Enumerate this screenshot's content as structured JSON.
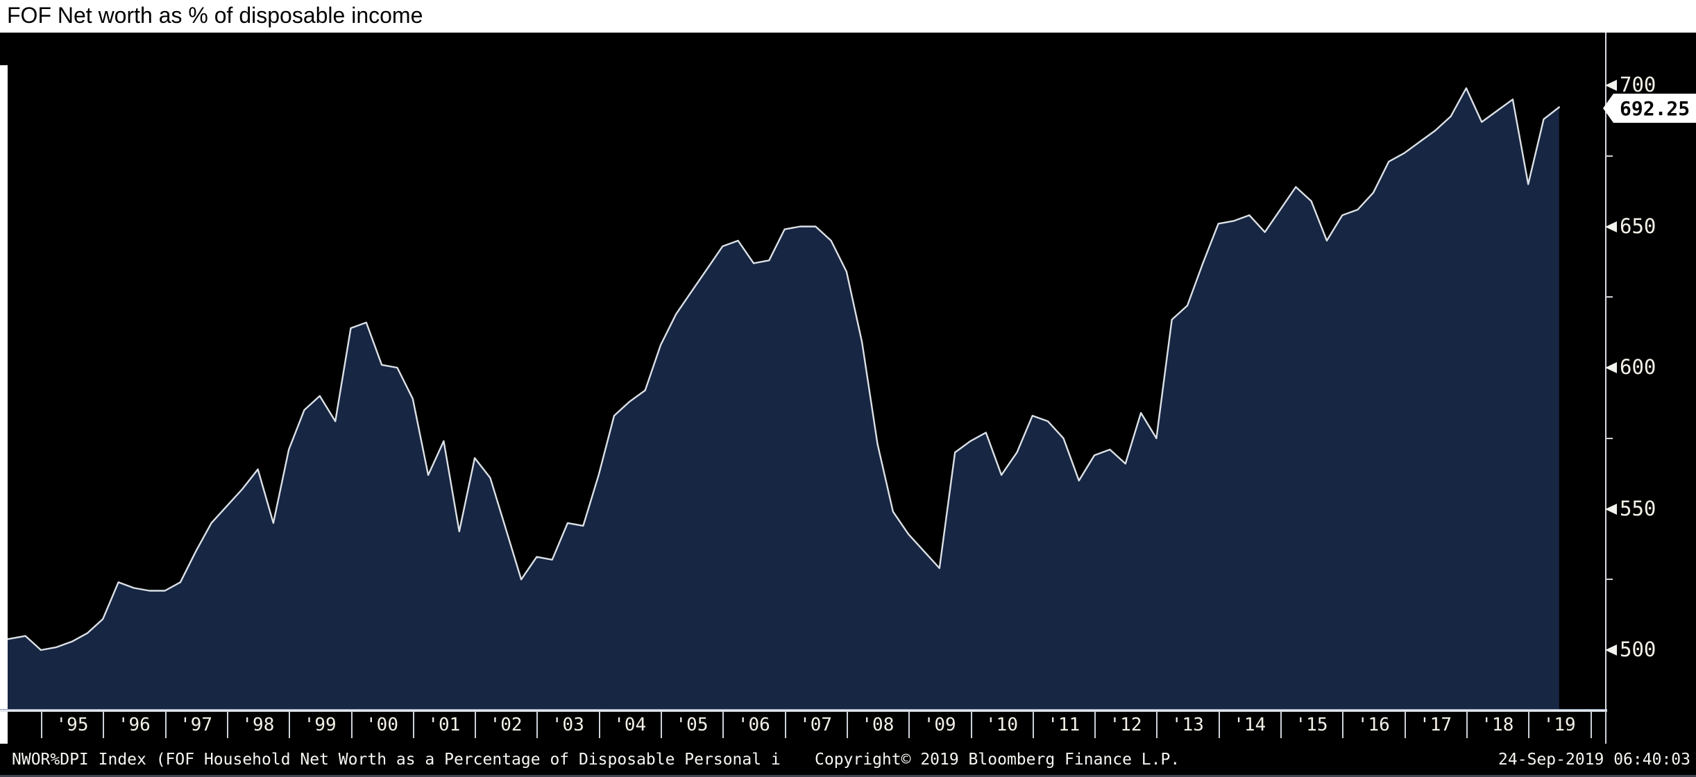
{
  "title": "FOF Net worth as % of disposable income",
  "y_axis": {
    "current_value": "692.25",
    "major_ticks": [
      500,
      550,
      600,
      650,
      700
    ],
    "minor_ticks": [
      525,
      575,
      625,
      675
    ]
  },
  "x_axis": {
    "year_labels": [
      "'95",
      "'96",
      "'97",
      "'98",
      "'99",
      "'00",
      "'01",
      "'02",
      "'03",
      "'04",
      "'05",
      "'06",
      "'07",
      "'08",
      "'09",
      "'10",
      "'11",
      "'12",
      "'13",
      "'14",
      "'15",
      "'16",
      "'17",
      "'18",
      "'19"
    ]
  },
  "footer": {
    "left": "NWOR%DPI Index (FOF Household Net Worth as a Percentage of Disposable Personal i",
    "center": "Copyright© 2019 Bloomberg Finance L.P.",
    "right": "24-Sep-2019 06:40:03"
  },
  "colors": {
    "background": "#000000",
    "title_bar": "#ffffff",
    "area_fill": "#172642",
    "line": "#dce1e7",
    "axis": "#d8dce2",
    "tick_label": "#f4f1e8",
    "flag_bg": "#ffffff",
    "flag_text": "#000000"
  },
  "chart_data": {
    "type": "area",
    "title": "FOF Net worth as % of disposable income",
    "xlabel": "",
    "ylabel": "Net worth as % of disposable income",
    "x_range_years": [
      1994.25,
      2019.5
    ],
    "ylim": [
      479,
      718
    ],
    "y_ticks": [
      500,
      550,
      600,
      650,
      700
    ],
    "grid": false,
    "legend": "none",
    "last_value": 692.25,
    "series": [
      {
        "name": "NWOR%DPI Index",
        "points": [
          {
            "q": "1994Q1",
            "v": 503
          },
          {
            "q": "1994Q2",
            "v": 504
          },
          {
            "q": "1994Q3",
            "v": 505
          },
          {
            "q": "1994Q4",
            "v": 500
          },
          {
            "q": "1995Q1",
            "v": 501
          },
          {
            "q": "1995Q2",
            "v": 503
          },
          {
            "q": "1995Q3",
            "v": 506
          },
          {
            "q": "1995Q4",
            "v": 511
          },
          {
            "q": "1996Q1",
            "v": 524
          },
          {
            "q": "1996Q2",
            "v": 522
          },
          {
            "q": "1996Q3",
            "v": 521
          },
          {
            "q": "1996Q4",
            "v": 521
          },
          {
            "q": "1997Q1",
            "v": 524
          },
          {
            "q": "1997Q2",
            "v": 535
          },
          {
            "q": "1997Q3",
            "v": 545
          },
          {
            "q": "1997Q4",
            "v": 551
          },
          {
            "q": "1998Q1",
            "v": 557
          },
          {
            "q": "1998Q2",
            "v": 564
          },
          {
            "q": "1998Q3",
            "v": 545
          },
          {
            "q": "1998Q4",
            "v": 571
          },
          {
            "q": "1999Q1",
            "v": 585
          },
          {
            "q": "1999Q2",
            "v": 590
          },
          {
            "q": "1999Q3",
            "v": 581
          },
          {
            "q": "1999Q4",
            "v": 614
          },
          {
            "q": "2000Q1",
            "v": 616
          },
          {
            "q": "2000Q2",
            "v": 601
          },
          {
            "q": "2000Q3",
            "v": 600
          },
          {
            "q": "2000Q4",
            "v": 589
          },
          {
            "q": "2001Q1",
            "v": 562
          },
          {
            "q": "2001Q2",
            "v": 574
          },
          {
            "q": "2001Q3",
            "v": 542
          },
          {
            "q": "2001Q4",
            "v": 568
          },
          {
            "q": "2002Q1",
            "v": 561
          },
          {
            "q": "2002Q2",
            "v": 543
          },
          {
            "q": "2002Q3",
            "v": 525
          },
          {
            "q": "2002Q4",
            "v": 533
          },
          {
            "q": "2003Q1",
            "v": 532
          },
          {
            "q": "2003Q2",
            "v": 545
          },
          {
            "q": "2003Q3",
            "v": 544
          },
          {
            "q": "2003Q4",
            "v": 562
          },
          {
            "q": "2004Q1",
            "v": 583
          },
          {
            "q": "2004Q2",
            "v": 588
          },
          {
            "q": "2004Q3",
            "v": 592
          },
          {
            "q": "2004Q4",
            "v": 608
          },
          {
            "q": "2005Q1",
            "v": 619
          },
          {
            "q": "2005Q2",
            "v": 627
          },
          {
            "q": "2005Q3",
            "v": 635
          },
          {
            "q": "2005Q4",
            "v": 643
          },
          {
            "q": "2006Q1",
            "v": 645
          },
          {
            "q": "2006Q2",
            "v": 637
          },
          {
            "q": "2006Q3",
            "v": 638
          },
          {
            "q": "2006Q4",
            "v": 649
          },
          {
            "q": "2007Q1",
            "v": 650
          },
          {
            "q": "2007Q2",
            "v": 650
          },
          {
            "q": "2007Q3",
            "v": 645
          },
          {
            "q": "2007Q4",
            "v": 634
          },
          {
            "q": "2008Q1",
            "v": 609
          },
          {
            "q": "2008Q2",
            "v": 573
          },
          {
            "q": "2008Q3",
            "v": 549
          },
          {
            "q": "2008Q4",
            "v": 541
          },
          {
            "q": "2009Q1",
            "v": 535
          },
          {
            "q": "2009Q2",
            "v": 529
          },
          {
            "q": "2009Q3",
            "v": 570
          },
          {
            "q": "2009Q4",
            "v": 574
          },
          {
            "q": "2010Q1",
            "v": 577
          },
          {
            "q": "2010Q2",
            "v": 562
          },
          {
            "q": "2010Q3",
            "v": 570
          },
          {
            "q": "2010Q4",
            "v": 583
          },
          {
            "q": "2011Q1",
            "v": 581
          },
          {
            "q": "2011Q2",
            "v": 575
          },
          {
            "q": "2011Q3",
            "v": 560
          },
          {
            "q": "2011Q4",
            "v": 569
          },
          {
            "q": "2012Q1",
            "v": 571
          },
          {
            "q": "2012Q2",
            "v": 566
          },
          {
            "q": "2012Q3",
            "v": 584
          },
          {
            "q": "2012Q4",
            "v": 575
          },
          {
            "q": "2013Q1",
            "v": 617
          },
          {
            "q": "2013Q2",
            "v": 622
          },
          {
            "q": "2013Q3",
            "v": 637
          },
          {
            "q": "2013Q4",
            "v": 651
          },
          {
            "q": "2014Q1",
            "v": 652
          },
          {
            "q": "2014Q2",
            "v": 654
          },
          {
            "q": "2014Q3",
            "v": 648
          },
          {
            "q": "2014Q4",
            "v": 656
          },
          {
            "q": "2015Q1",
            "v": 664
          },
          {
            "q": "2015Q2",
            "v": 659
          },
          {
            "q": "2015Q3",
            "v": 645
          },
          {
            "q": "2015Q4",
            "v": 654
          },
          {
            "q": "2016Q1",
            "v": 656
          },
          {
            "q": "2016Q2",
            "v": 662
          },
          {
            "q": "2016Q3",
            "v": 673
          },
          {
            "q": "2016Q4",
            "v": 676
          },
          {
            "q": "2017Q1",
            "v": 680
          },
          {
            "q": "2017Q2",
            "v": 684
          },
          {
            "q": "2017Q3",
            "v": 689
          },
          {
            "q": "2017Q4",
            "v": 699
          },
          {
            "q": "2018Q1",
            "v": 687
          },
          {
            "q": "2018Q2",
            "v": 691
          },
          {
            "q": "2018Q3",
            "v": 695
          },
          {
            "q": "2018Q4",
            "v": 665
          },
          {
            "q": "2019Q1",
            "v": 688
          },
          {
            "q": "2019Q2",
            "v": 692.25
          }
        ]
      }
    ]
  }
}
